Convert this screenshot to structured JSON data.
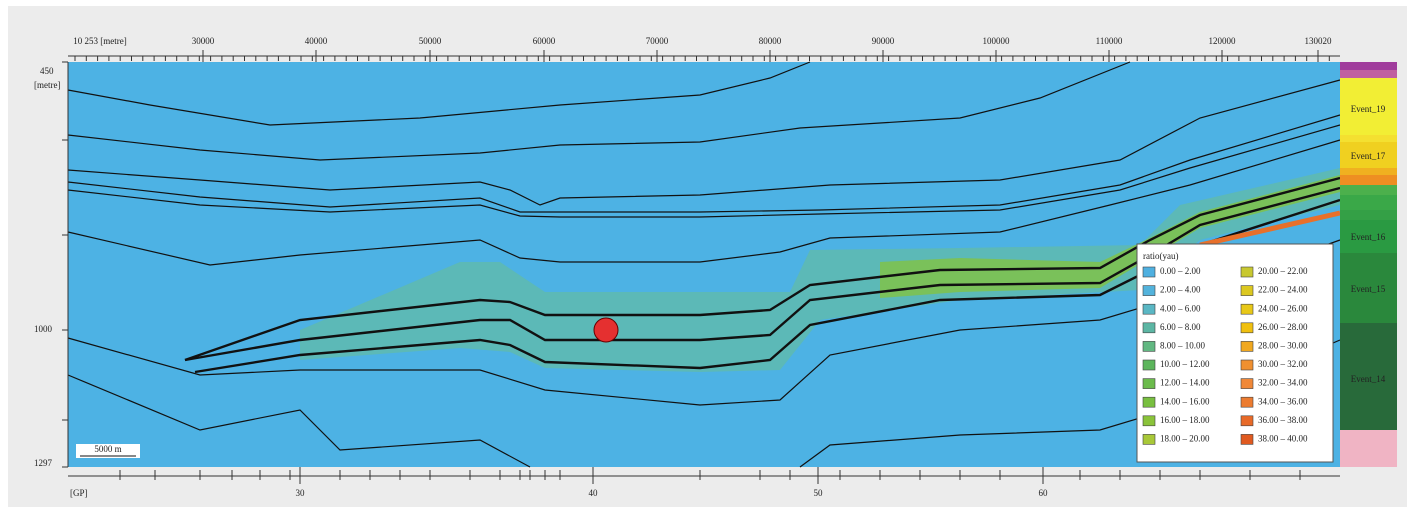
{
  "top_axis": {
    "unit": "10 253 [metre]",
    "labels": [
      "30000",
      "40000",
      "50000",
      "60000",
      "70000",
      "80000",
      "90000",
      "100000",
      "110000",
      "120000",
      "130020"
    ]
  },
  "left_axis": {
    "top": "450",
    "unit": "[metre]",
    "middle": "1000",
    "bottom": "1297"
  },
  "bottom_axis": {
    "unit": "[GP]",
    "labels": [
      "30",
      "40",
      "50",
      "60"
    ]
  },
  "scale_bar": "5000 m",
  "legend": {
    "title": "ratio(yau)",
    "entries": [
      "0.00 – 2.00",
      "2.00 – 4.00",
      "4.00 – 6.00",
      "6.00 – 8.00",
      "8.00 – 10.00",
      "10.00 – 12.00",
      "12.00 – 14.00",
      "14.00 – 16.00",
      "16.00 – 18.00",
      "18.00 – 20.00",
      "20.00 – 22.00",
      "22.00 – 24.00",
      "24.00 – 26.00",
      "26.00 – 28.00",
      "28.00 – 30.00",
      "30.00 – 32.00",
      "32.00 – 34.00",
      "34.00 – 36.00",
      "36.00 – 38.00",
      "38.00 – 40.00"
    ]
  },
  "column": {
    "labels": [
      "Event_19",
      "Event_17",
      "Event_16",
      "Event_15",
      "Event_14"
    ]
  }
}
